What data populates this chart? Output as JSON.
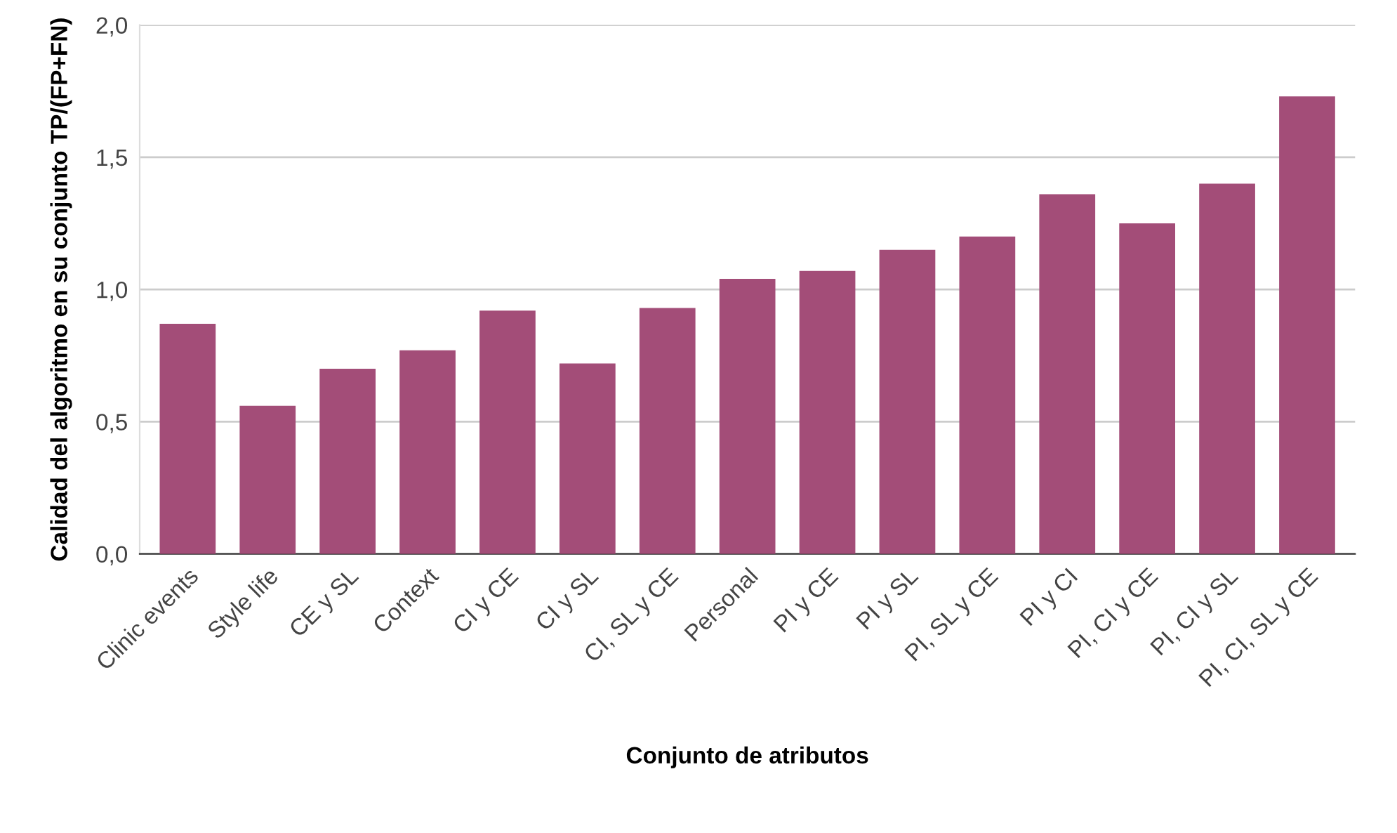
{
  "chart_data": {
    "type": "bar",
    "xlabel": "Conjunto de atributos",
    "ylabel": "Calidad del algoritmo en su conjunto TP/(FP+FN)",
    "categories": [
      "Clinic events",
      "Style life",
      "CE y SL",
      "Context",
      "CI y CE",
      "CI y SL",
      "CI, SL y CE",
      "Personal",
      "PI y CE",
      "PI y SL",
      "PI, SL y CE",
      "PI y CI",
      "PI, CI y CE",
      "PI, CI y SL",
      "PI, CI, SL y CE"
    ],
    "values": [
      0.87,
      0.56,
      0.7,
      0.77,
      0.92,
      0.72,
      0.93,
      1.04,
      1.07,
      1.15,
      1.2,
      1.36,
      1.25,
      1.4,
      1.73
    ],
    "color": "#a34d78",
    "ylim": [
      0,
      2
    ],
    "yticks": [
      {
        "value": 0,
        "label": "0,0"
      },
      {
        "value": 0.5,
        "label": "0,5"
      },
      {
        "value": 1,
        "label": "1,0"
      },
      {
        "value": 1.5,
        "label": "1,5"
      },
      {
        "value": 2,
        "label": "2,0"
      }
    ],
    "grid": "y",
    "legend": false
  }
}
